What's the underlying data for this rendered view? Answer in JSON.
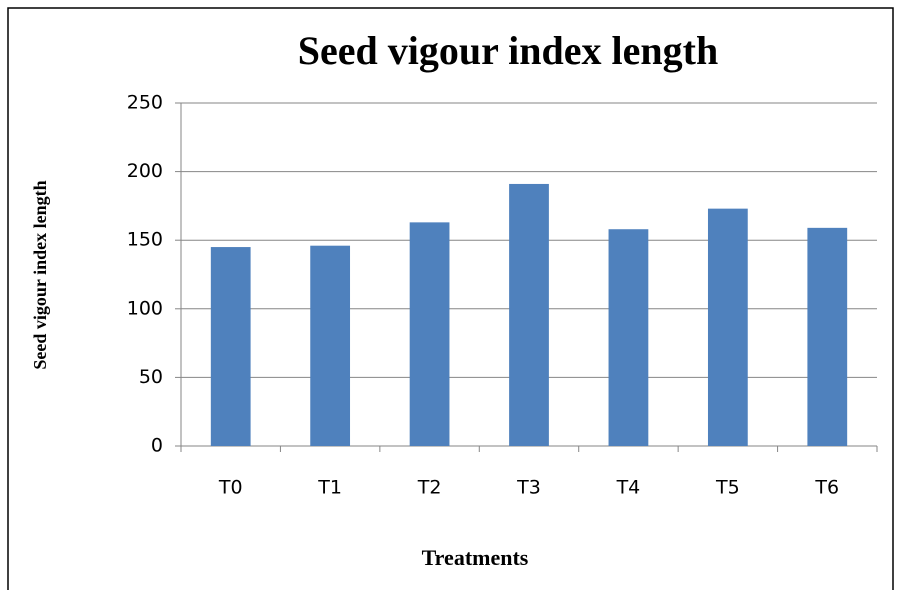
{
  "chart_data": {
    "type": "bar",
    "title": "Seed vigour index length",
    "x_label": "Treatments",
    "y_label": "Seed vigour index length",
    "categories": [
      "T0",
      "T1",
      "T2",
      "T3",
      "T4",
      "T5",
      "T6"
    ],
    "values": [
      145,
      146,
      163,
      191,
      158,
      173,
      159
    ],
    "color": "#4f81bd",
    "ylim": [
      0,
      250
    ],
    "yticks": [
      0,
      50,
      100,
      150,
      200,
      250
    ],
    "grid": true
  }
}
